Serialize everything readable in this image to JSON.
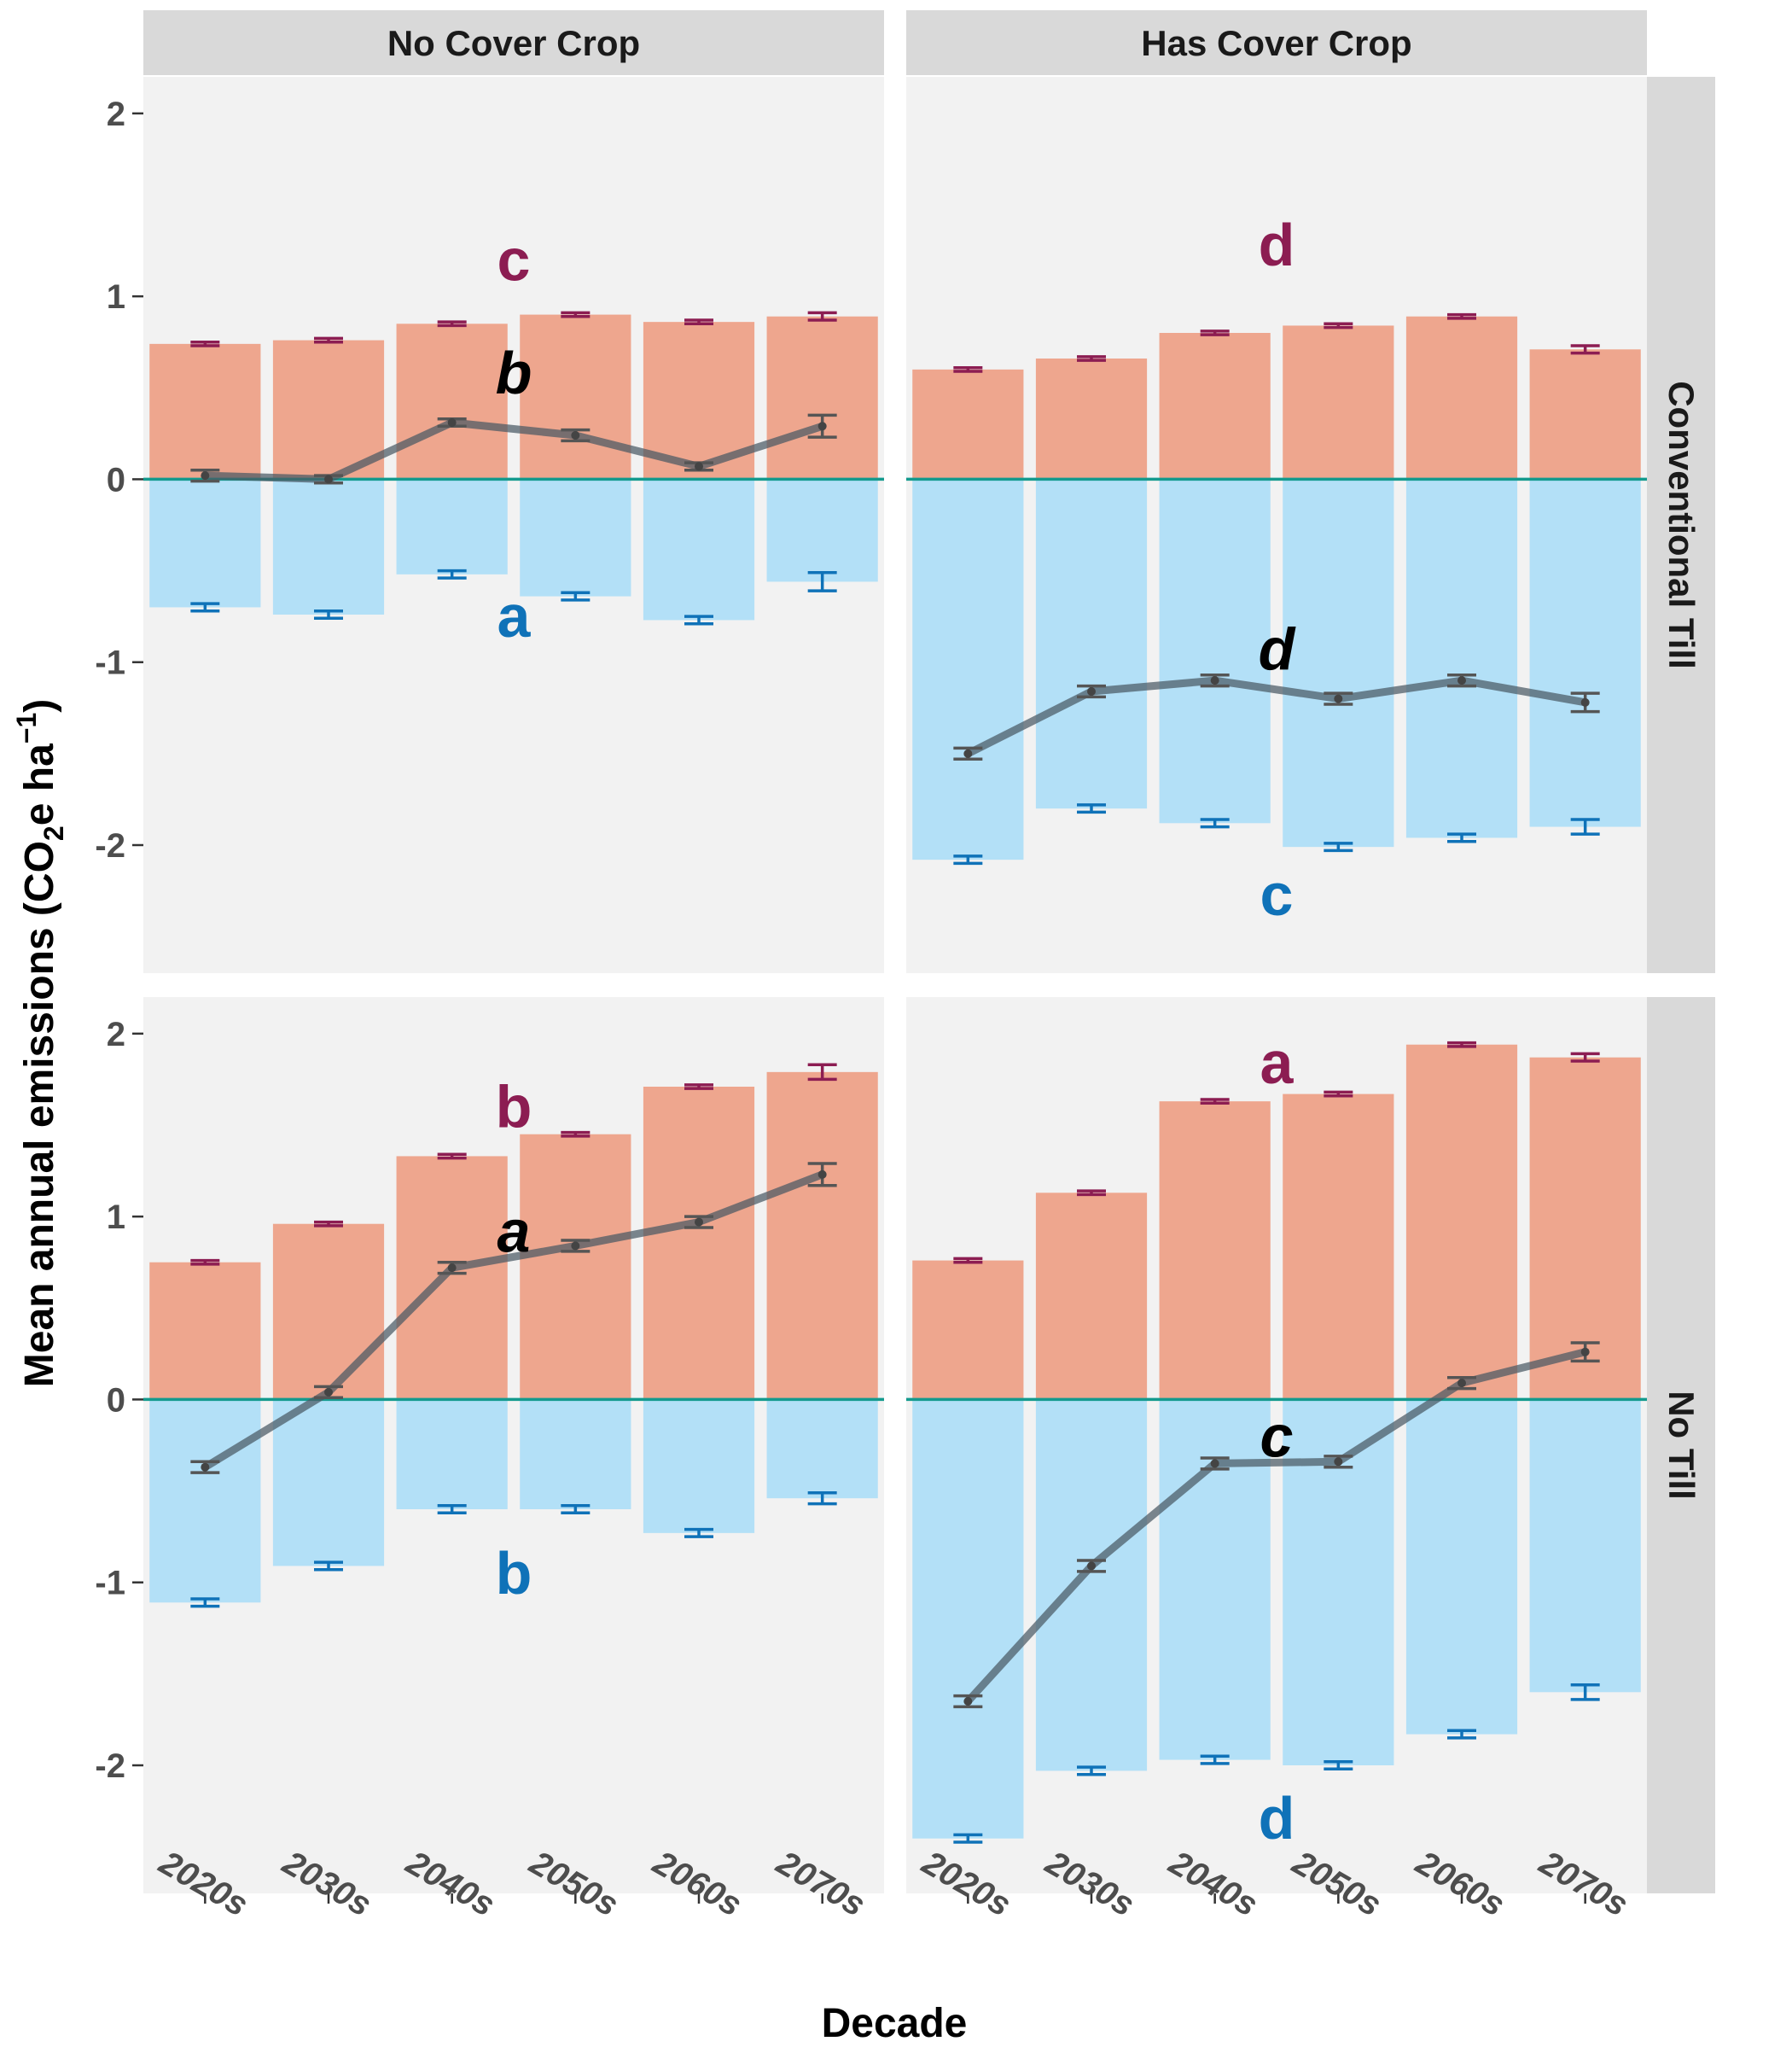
{
  "chart_data": {
    "type": "bar",
    "xlabel": "Decade",
    "ylabel_main": "Mean annual emissions (CO",
    "ylabel_sub": "2",
    "ylabel_mid": "e ha",
    "ylabel_sup": "−1",
    "ylabel_end": ")",
    "ylim": [
      -2.7,
      2.2
    ],
    "yticks": [
      -2,
      -1,
      0,
      1,
      2
    ],
    "ytick_labels": [
      "-2",
      "-1",
      "0",
      "1",
      "2"
    ],
    "categories": [
      "2020s",
      "2030s",
      "2040s",
      "2050s",
      "2060s",
      "2070s"
    ],
    "grid": false,
    "colors": {
      "panel_bg": "#f2f2f2",
      "strip_bg": "#d9d9d9",
      "positive_bar": "#eea68e",
      "negative_bar": "#b3e0f7",
      "positive_err": "#8c1d52",
      "negative_err": "#0f72b8",
      "net_line": "#4a5964",
      "zero_line": "#139a8e",
      "positive_letter": "#8c1d52",
      "negative_letter": "#0f72b8",
      "net_letter": "#000000"
    },
    "columns": [
      "No Cover Crop",
      "Has Cover Crop"
    ],
    "rows": [
      "Conventional Till",
      "No Till"
    ],
    "panels": [
      {
        "row": 0,
        "col": 0,
        "positive": [
          0.74,
          0.76,
          0.85,
          0.9,
          0.86,
          0.89
        ],
        "positive_err": [
          0.01,
          0.01,
          0.01,
          0.01,
          0.01,
          0.02
        ],
        "negative": [
          -0.7,
          -0.74,
          -0.52,
          -0.64,
          -0.77,
          -0.56
        ],
        "negative_err": [
          0.02,
          0.02,
          0.02,
          0.02,
          0.02,
          0.05
        ],
        "net": [
          0.02,
          0.0,
          0.31,
          0.24,
          0.07,
          0.29
        ],
        "net_err": [
          0.03,
          0.02,
          0.02,
          0.03,
          0.02,
          0.06
        ],
        "positive_letter": "c",
        "negative_letter": "a",
        "net_letter": "b",
        "positive_letter_y": 1.2,
        "negative_letter_y": -0.75,
        "net_letter_y": 0.58
      },
      {
        "row": 0,
        "col": 1,
        "positive": [
          0.6,
          0.66,
          0.8,
          0.84,
          0.89,
          0.71
        ],
        "positive_err": [
          0.01,
          0.01,
          0.01,
          0.01,
          0.01,
          0.02
        ],
        "negative": [
          -2.08,
          -1.8,
          -1.88,
          -2.01,
          -1.96,
          -1.9
        ],
        "negative_err": [
          0.02,
          0.02,
          0.02,
          0.02,
          0.02,
          0.04
        ],
        "net": [
          -1.5,
          -1.16,
          -1.1,
          -1.2,
          -1.1,
          -1.22
        ],
        "net_err": [
          0.03,
          0.03,
          0.03,
          0.03,
          0.03,
          0.05
        ],
        "positive_letter": "d",
        "negative_letter": "c",
        "net_letter": "d",
        "positive_letter_y": 1.28,
        "negative_letter_y": -2.27,
        "net_letter_y": -0.93
      },
      {
        "row": 1,
        "col": 0,
        "positive": [
          0.75,
          0.96,
          1.33,
          1.45,
          1.71,
          1.79
        ],
        "positive_err": [
          0.01,
          0.01,
          0.01,
          0.01,
          0.01,
          0.04
        ],
        "negative": [
          -1.11,
          -0.91,
          -0.6,
          -0.6,
          -0.73,
          -0.54
        ],
        "negative_err": [
          0.02,
          0.02,
          0.02,
          0.02,
          0.02,
          0.03
        ],
        "net": [
          -0.37,
          0.04,
          0.72,
          0.84,
          0.97,
          1.23
        ],
        "net_err": [
          0.03,
          0.03,
          0.03,
          0.03,
          0.03,
          0.06
        ],
        "positive_letter": "b",
        "negative_letter": "b",
        "net_letter": "a",
        "positive_letter_y": 1.6,
        "negative_letter_y": -0.95,
        "net_letter_y": 0.92
      },
      {
        "row": 1,
        "col": 1,
        "positive": [
          0.76,
          1.13,
          1.63,
          1.67,
          1.94,
          1.87
        ],
        "positive_err": [
          0.01,
          0.01,
          0.01,
          0.01,
          0.01,
          0.02
        ],
        "negative": [
          -2.4,
          -2.03,
          -1.97,
          -2.0,
          -1.83,
          -1.6
        ],
        "negative_err": [
          0.02,
          0.02,
          0.02,
          0.02,
          0.02,
          0.04
        ],
        "net": [
          -1.65,
          -0.91,
          -0.35,
          -0.34,
          0.09,
          0.26
        ],
        "net_err": [
          0.03,
          0.03,
          0.03,
          0.03,
          0.03,
          0.05
        ],
        "positive_letter": "a",
        "negative_letter": "d",
        "net_letter": "c",
        "positive_letter_y": 1.84,
        "negative_letter_y": -2.29,
        "net_letter_y": -0.2
      }
    ]
  }
}
